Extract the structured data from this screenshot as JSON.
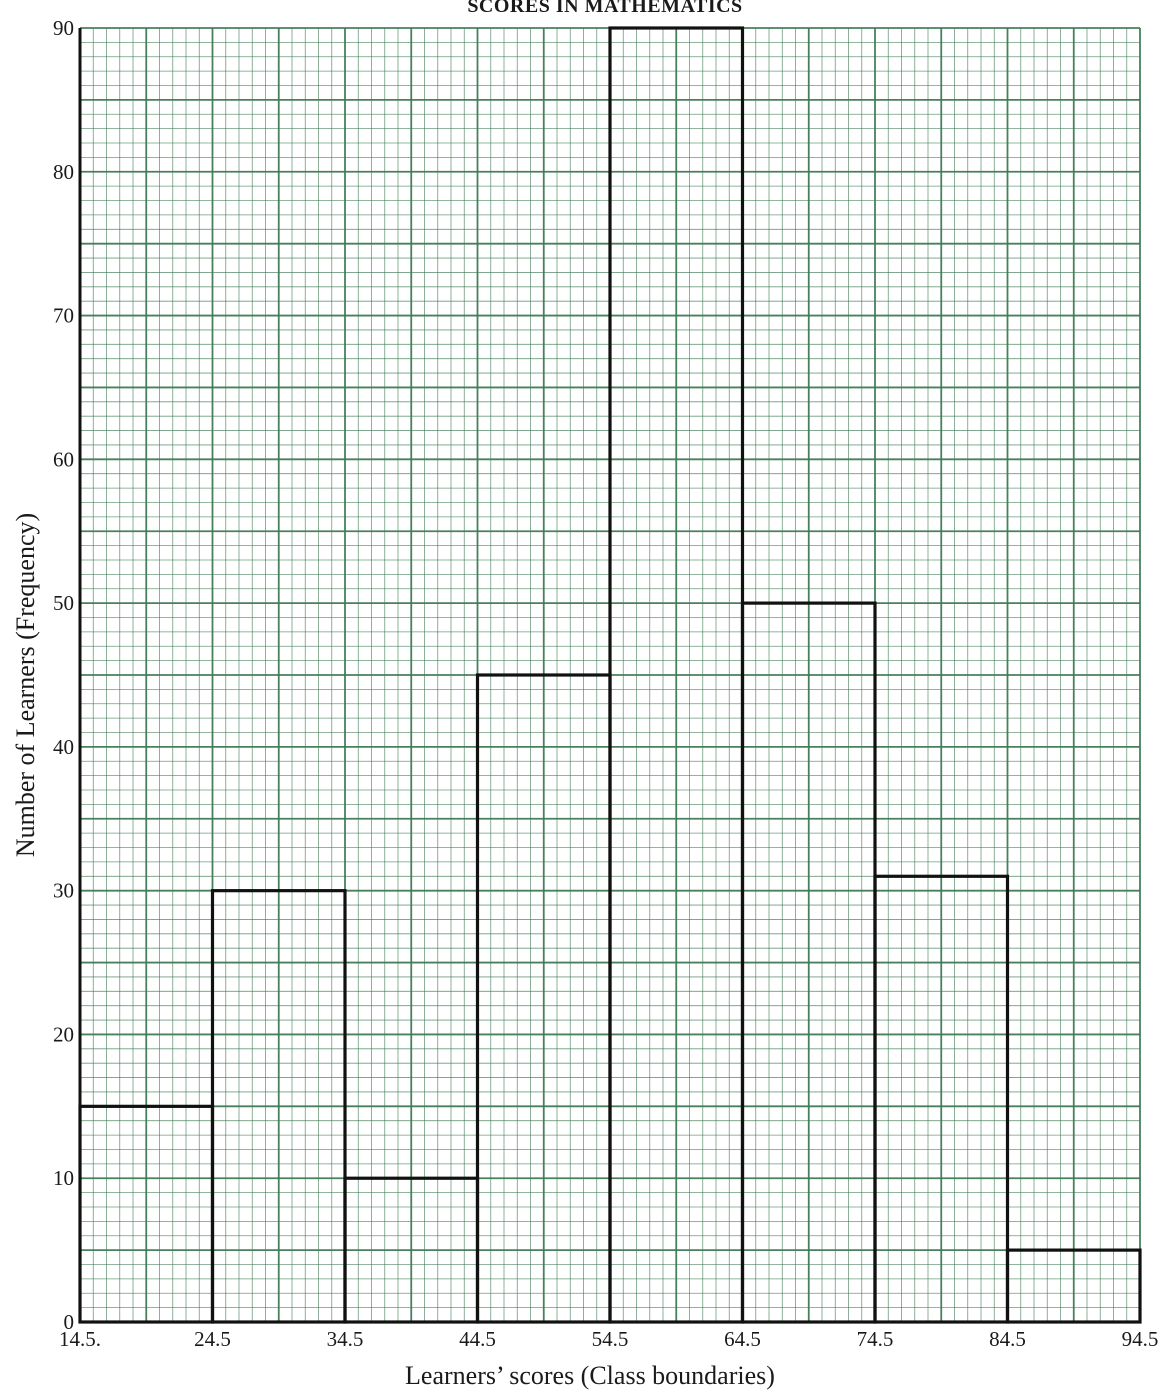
{
  "chart_data": {
    "type": "bar",
    "title": "SCORES IN MATHEMATICS",
    "xlabel": "Learners’ scores  (Class boundaries)",
    "ylabel": "Number of Learners (Frequency)",
    "bin_edges": [
      14.5,
      24.5,
      34.5,
      44.5,
      54.5,
      64.5,
      74.5,
      84.5,
      94.5
    ],
    "x_tick_labels": [
      "14.5.",
      "24.5",
      "34.5",
      "44.5",
      "54.5",
      "64.5",
      "74.5",
      "84.5",
      "94.5"
    ],
    "values": [
      15,
      30,
      10,
      45,
      90,
      50,
      31,
      5
    ],
    "y_ticks": [
      0,
      10,
      20,
      30,
      40,
      50,
      60,
      70,
      80,
      90
    ],
    "xlim": [
      14.5,
      94.5
    ],
    "ylim": [
      0,
      90
    ],
    "grid": true,
    "colors": {
      "grid": "#3f7a55",
      "bars": "#111111",
      "background": "#ffffff"
    }
  }
}
